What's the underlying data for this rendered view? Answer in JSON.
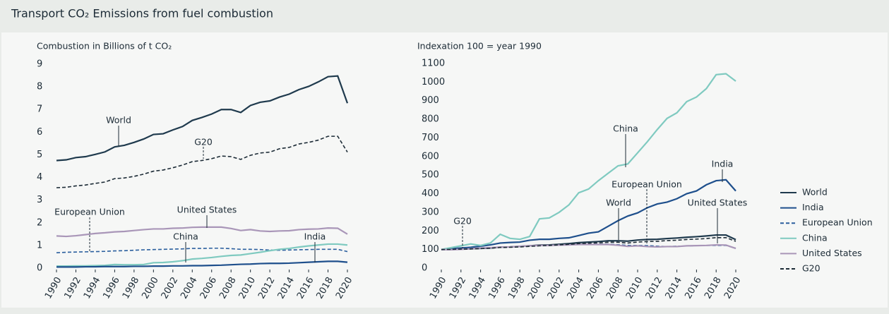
{
  "header": {
    "title": "Transport CO₂ Emissions from fuel combustion"
  },
  "chart_data": [
    {
      "type": "line",
      "y_label": "Combustion in Billions of t CO₂",
      "x": [
        1990,
        1991,
        1992,
        1993,
        1994,
        1995,
        1996,
        1997,
        1998,
        1999,
        2000,
        2001,
        2002,
        2003,
        2004,
        2005,
        2006,
        2007,
        2008,
        2009,
        2010,
        2011,
        2012,
        2013,
        2014,
        2015,
        2016,
        2017,
        2018,
        2019,
        2020
      ],
      "xlim": [
        1990,
        2020
      ],
      "xticks": [
        1990,
        1992,
        1994,
        1996,
        1998,
        2000,
        2002,
        2004,
        2006,
        2008,
        2010,
        2012,
        2014,
        2016,
        2018,
        2020
      ],
      "ylim": [
        0,
        9
      ],
      "yticks": [
        0,
        1,
        2,
        3,
        4,
        5,
        6,
        7,
        8,
        9
      ],
      "series": [
        {
          "color": "#1f3a4d",
          "values": [
            4.75,
            4.78,
            4.88,
            4.92,
            5.02,
            5.13,
            5.35,
            5.42,
            5.55,
            5.7,
            5.9,
            5.93,
            6.1,
            6.25,
            6.52,
            6.65,
            6.8,
            7.0,
            7.0,
            6.87,
            7.18,
            7.32,
            7.38,
            7.55,
            7.68,
            7.88,
            8.02,
            8.22,
            8.45,
            8.48,
            7.28
          ]
        },
        {
          "color": "#1c2b36",
          "dash": true,
          "values": [
            3.55,
            3.57,
            3.63,
            3.67,
            3.74,
            3.8,
            3.95,
            3.98,
            4.05,
            4.15,
            4.28,
            4.33,
            4.43,
            4.55,
            4.7,
            4.75,
            4.83,
            4.95,
            4.92,
            4.8,
            4.98,
            5.08,
            5.12,
            5.27,
            5.33,
            5.48,
            5.55,
            5.65,
            5.82,
            5.82,
            5.12
          ]
        },
        {
          "color": "#2b5f9e",
          "dash": true,
          "values": [
            0.68,
            0.7,
            0.71,
            0.72,
            0.73,
            0.74,
            0.76,
            0.77,
            0.79,
            0.81,
            0.82,
            0.83,
            0.84,
            0.85,
            0.87,
            0.87,
            0.88,
            0.88,
            0.86,
            0.83,
            0.83,
            0.82,
            0.8,
            0.79,
            0.8,
            0.81,
            0.82,
            0.83,
            0.83,
            0.83,
            0.73
          ]
        },
        {
          "color": "#7fcac0",
          "values": [
            0.09,
            0.09,
            0.1,
            0.1,
            0.11,
            0.12,
            0.16,
            0.15,
            0.15,
            0.16,
            0.24,
            0.25,
            0.28,
            0.33,
            0.4,
            0.43,
            0.47,
            0.52,
            0.56,
            0.58,
            0.64,
            0.7,
            0.77,
            0.83,
            0.87,
            0.93,
            0.98,
            1.02,
            1.06,
            1.06,
            1.02
          ]
        },
        {
          "color": "#a996b8",
          "values": [
            1.42,
            1.4,
            1.43,
            1.48,
            1.53,
            1.56,
            1.6,
            1.62,
            1.66,
            1.7,
            1.73,
            1.73,
            1.76,
            1.77,
            1.8,
            1.81,
            1.81,
            1.81,
            1.75,
            1.66,
            1.7,
            1.64,
            1.62,
            1.64,
            1.65,
            1.7,
            1.72,
            1.73,
            1.77,
            1.76,
            1.5
          ]
        },
        {
          "color": "#1e4f8c",
          "values": [
            0.05,
            0.05,
            0.05,
            0.06,
            0.06,
            0.07,
            0.07,
            0.07,
            0.08,
            0.08,
            0.09,
            0.09,
            0.1,
            0.1,
            0.11,
            0.11,
            0.12,
            0.13,
            0.15,
            0.17,
            0.18,
            0.2,
            0.21,
            0.21,
            0.22,
            0.24,
            0.26,
            0.28,
            0.3,
            0.3,
            0.26
          ]
        }
      ],
      "annotations": [
        "World",
        "G20",
        "European Union",
        "United States",
        "China",
        "India"
      ]
    },
    {
      "type": "line",
      "y_label": "Indexation 100 = year 1990",
      "x": [
        1990,
        1991,
        1992,
        1993,
        1994,
        1995,
        1996,
        1997,
        1998,
        1999,
        2000,
        2001,
        2002,
        2003,
        2004,
        2005,
        2006,
        2007,
        2008,
        2009,
        2010,
        2011,
        2012,
        2013,
        2014,
        2015,
        2016,
        2017,
        2018,
        2019,
        2020
      ],
      "xlim": [
        1990,
        2020
      ],
      "xticks": [
        1990,
        1992,
        1994,
        1996,
        1998,
        2000,
        2002,
        2004,
        2006,
        2008,
        2010,
        2012,
        2014,
        2016,
        2018,
        2020
      ],
      "ylim": [
        0,
        1100
      ],
      "yticks": [
        0,
        100,
        200,
        300,
        400,
        500,
        600,
        700,
        800,
        900,
        1000,
        1100
      ],
      "legend": "right",
      "series": [
        {
          "name": "World",
          "color": "#1f3a4d",
          "values": [
            100,
            101,
            103,
            104,
            106,
            108,
            113,
            114,
            117,
            120,
            124,
            125,
            128,
            132,
            137,
            140,
            143,
            147,
            147,
            145,
            151,
            154,
            155,
            159,
            162,
            166,
            169,
            173,
            178,
            178,
            153
          ]
        },
        {
          "name": "India",
          "color": "#1e4f8c",
          "values": [
            100,
            105,
            108,
            112,
            118,
            125,
            135,
            138,
            140,
            150,
            155,
            155,
            160,
            163,
            175,
            188,
            195,
            225,
            255,
            280,
            297,
            325,
            345,
            355,
            373,
            400,
            415,
            448,
            470,
            475,
            415
          ]
        },
        {
          "name": "European Union",
          "color": "#2b5f9e",
          "dash": true,
          "values": [
            100,
            103,
            104,
            106,
            107,
            109,
            112,
            113,
            116,
            119,
            121,
            122,
            124,
            125,
            128,
            128,
            129,
            129,
            126,
            122,
            122,
            121,
            118,
            116,
            118,
            119,
            121,
            122,
            122,
            122,
            107
          ]
        },
        {
          "name": "China",
          "color": "#7fcac0",
          "values": [
            100,
            110,
            120,
            130,
            122,
            135,
            182,
            160,
            155,
            170,
            265,
            270,
            300,
            340,
            405,
            425,
            470,
            510,
            550,
            560,
            620,
            680,
            745,
            805,
            835,
            895,
            920,
            965,
            1040,
            1045,
            1005
          ]
        },
        {
          "name": "United States",
          "color": "#a996b8",
          "values": [
            100,
            99,
            101,
            104,
            108,
            110,
            113,
            114,
            117,
            120,
            122,
            122,
            124,
            125,
            127,
            127,
            127,
            127,
            123,
            117,
            120,
            116,
            114,
            116,
            116,
            120,
            121,
            122,
            125,
            124,
            106
          ]
        },
        {
          "name": "G20",
          "color": "#1c2b36",
          "dash": true,
          "values": [
            100,
            101,
            102,
            103,
            105,
            107,
            111,
            112,
            114,
            117,
            120,
            122,
            125,
            128,
            132,
            134,
            136,
            139,
            139,
            135,
            140,
            143,
            144,
            148,
            150,
            154,
            156,
            159,
            164,
            164,
            144
          ]
        }
      ],
      "annotations": [
        "China",
        "European Union",
        "World",
        "India",
        "United States",
        "G20"
      ]
    }
  ]
}
